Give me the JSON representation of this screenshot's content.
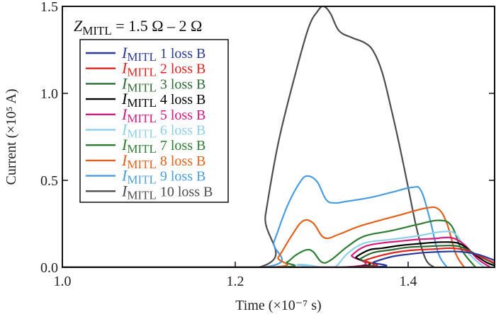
{
  "chart_data": {
    "type": "line",
    "title": "",
    "xlabel": "Time (×10⁻⁷ s)",
    "ylabel": "Current (×10⁵ A)",
    "xlim": [
      1.0,
      1.5
    ],
    "ylim": [
      0.0,
      1.5
    ],
    "xticks": [
      1.0,
      1.2,
      1.4
    ],
    "xtick_labels": [
      "1.0",
      "1.2",
      "1.4"
    ],
    "yticks": [
      0.0,
      0.5,
      1.0,
      1.5
    ],
    "ytick_labels": [
      "0.0",
      "0.5",
      "1.0",
      "1.5"
    ],
    "grid": false,
    "legend_position": "top-left",
    "annotation": {
      "prefix": "Z",
      "subscript": "MITL",
      "text": " = 1.5 Ω – 2 Ω"
    },
    "series": [
      {
        "name": "I_MITL 1 loss B",
        "label_prefix": "I",
        "label_sub": "MITL",
        "label_rest": " 1 loss B",
        "color": "#2b3a9a",
        "x": [
          1.0,
          1.343,
          1.36,
          1.38,
          1.4,
          1.42,
          1.44,
          1.46,
          1.48,
          1.5
        ],
        "y": [
          0.0,
          0.0,
          0.03,
          0.06,
          0.075,
          0.085,
          0.09,
          0.09,
          0.075,
          0.04
        ]
      },
      {
        "name": "I_MITL 2 loss B",
        "label_prefix": "I",
        "label_sub": "MITL",
        "label_rest": " 2 loss B",
        "color": "#e0231f",
        "x": [
          1.0,
          1.333,
          1.35,
          1.37,
          1.39,
          1.41,
          1.43,
          1.45,
          1.465,
          1.48,
          1.5
        ],
        "y": [
          0.0,
          0.0,
          0.04,
          0.07,
          0.09,
          0.1,
          0.105,
          0.11,
          0.1,
          0.07,
          0.025
        ]
      },
      {
        "name": "I_MITL 3 loss B",
        "label_prefix": "I",
        "label_sub": "MITL",
        "label_rest": " 3 loss B",
        "color": "#2e6b34",
        "x": [
          1.0,
          1.33,
          1.345,
          1.36,
          1.38,
          1.4,
          1.42,
          1.45,
          1.465,
          1.48,
          1.5
        ],
        "y": [
          0.0,
          0.0,
          0.05,
          0.085,
          0.1,
          0.115,
          0.12,
          0.125,
          0.11,
          0.07,
          0.02
        ]
      },
      {
        "name": "I_MITL 4 loss B",
        "label_prefix": "I",
        "label_sub": "MITL",
        "label_rest": " 4 loss B",
        "color": "#000000",
        "x": [
          1.0,
          1.326,
          1.34,
          1.355,
          1.37,
          1.39,
          1.41,
          1.44,
          1.46,
          1.475,
          1.49,
          1.5
        ],
        "y": [
          0.0,
          0.0,
          0.06,
          0.1,
          0.11,
          0.125,
          0.135,
          0.145,
          0.135,
          0.08,
          0.03,
          0.01
        ]
      },
      {
        "name": "I_MITL 5 loss B",
        "label_prefix": "I",
        "label_sub": "MITL",
        "label_rest": " 5 loss B",
        "color": "#d6187f",
        "x": [
          1.0,
          1.322,
          1.335,
          1.35,
          1.37,
          1.39,
          1.41,
          1.43,
          1.45,
          1.465,
          1.48,
          1.495
        ],
        "y": [
          0.0,
          0.0,
          0.07,
          0.12,
          0.14,
          0.15,
          0.16,
          0.165,
          0.17,
          0.13,
          0.05,
          0.0
        ]
      },
      {
        "name": "I_MITL 6 loss B",
        "label_prefix": "I",
        "label_sub": "MITL",
        "label_rest": " 6 loss B",
        "color": "#8ecfeb",
        "x": [
          1.0,
          1.26,
          1.272,
          1.285,
          1.3,
          1.315,
          1.33,
          1.35,
          1.38,
          1.41,
          1.44,
          1.455,
          1.47,
          1.488
        ],
        "y": [
          0.0,
          0.0,
          0.015,
          0.012,
          0.0,
          0.0,
          0.08,
          0.14,
          0.16,
          0.18,
          0.205,
          0.19,
          0.08,
          0.0
        ]
      },
      {
        "name": "I_MITL 7 loss B",
        "label_prefix": "I",
        "label_sub": "MITL",
        "label_rest": " 7 loss B",
        "color": "#2e7d32",
        "x": [
          1.0,
          1.245,
          1.26,
          1.27,
          1.282,
          1.29,
          1.3,
          1.31,
          1.33,
          1.35,
          1.38,
          1.41,
          1.435,
          1.45,
          1.462,
          1.478
        ],
        "y": [
          0.0,
          0.0,
          0.03,
          0.07,
          0.1,
          0.09,
          0.03,
          0.04,
          0.12,
          0.18,
          0.21,
          0.245,
          0.27,
          0.24,
          0.1,
          0.0
        ]
      },
      {
        "name": "I_MITL 8 loss B",
        "label_prefix": "I",
        "label_sub": "MITL",
        "label_rest": " 8 loss B",
        "color": "#e0621e",
        "x": [
          1.0,
          1.238,
          1.25,
          1.265,
          1.278,
          1.29,
          1.303,
          1.32,
          1.34,
          1.36,
          1.39,
          1.42,
          1.435,
          1.445,
          1.455,
          1.465
        ],
        "y": [
          0.0,
          0.0,
          0.06,
          0.18,
          0.265,
          0.255,
          0.17,
          0.19,
          0.23,
          0.26,
          0.3,
          0.34,
          0.335,
          0.25,
          0.08,
          0.0
        ]
      },
      {
        "name": "I_MITL 9 loss B",
        "label_prefix": "I",
        "label_sub": "MITL",
        "label_rest": " 9 loss B",
        "color": "#4a9ee0",
        "x": [
          1.0,
          1.232,
          1.245,
          1.26,
          1.275,
          1.284,
          1.295,
          1.305,
          1.315,
          1.33,
          1.355,
          1.38,
          1.405,
          1.415,
          1.425,
          1.435,
          1.445
        ],
        "y": [
          0.0,
          0.0,
          0.15,
          0.35,
          0.49,
          0.525,
          0.49,
          0.39,
          0.37,
          0.38,
          0.4,
          0.43,
          0.46,
          0.44,
          0.28,
          0.08,
          0.0
        ]
      },
      {
        "name": "I_MITL 10 loss B",
        "label_prefix": "I",
        "label_sub": "MITL",
        "label_rest": " 10 loss B",
        "color": "#4d4d4d",
        "x": [
          1.0,
          1.227,
          1.235,
          1.25,
          1.27,
          1.285,
          1.295,
          1.302,
          1.31,
          1.32,
          1.335,
          1.35,
          1.36,
          1.37,
          1.38,
          1.39,
          1.4,
          1.41,
          1.42,
          1.43
        ],
        "y": [
          0.0,
          0.0,
          0.3,
          0.72,
          1.12,
          1.38,
          1.47,
          1.5,
          1.46,
          1.36,
          1.32,
          1.29,
          1.24,
          1.12,
          0.92,
          0.7,
          0.46,
          0.22,
          0.05,
          0.0
        ]
      }
    ]
  }
}
